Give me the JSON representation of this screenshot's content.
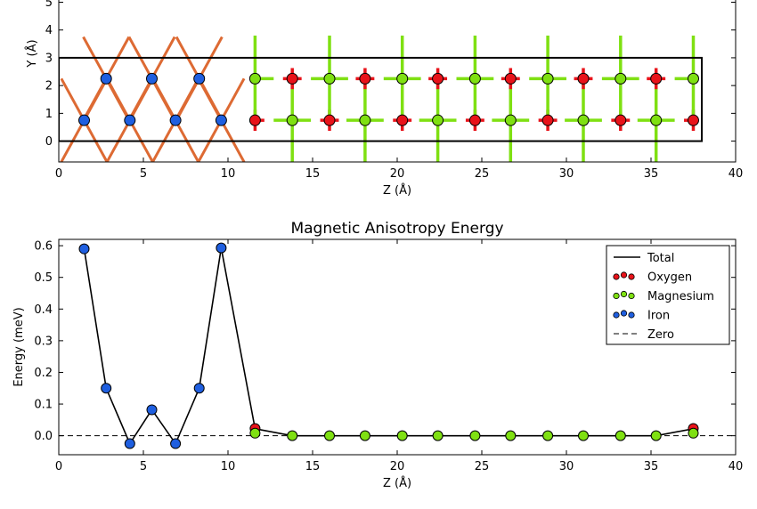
{
  "colors": {
    "iron": "#1f5fe0",
    "oxygen": "#e8131a",
    "magnesium": "#7fe012",
    "fe_bond": "#dd6a33",
    "line": "#000000",
    "background": "#ffffff"
  },
  "chart_data": [
    {
      "type": "scatter",
      "title": "",
      "xlabel": "Z (Å)",
      "ylabel": "Y (Å)",
      "xlim": [
        0,
        40
      ],
      "ylim": [
        -0.75,
        5.4
      ],
      "xticks": [
        0,
        5,
        10,
        15,
        20,
        25,
        30,
        35,
        40
      ],
      "yticks": [
        0,
        1,
        2,
        3,
        4,
        5
      ],
      "grid": false,
      "cell_box": {
        "z": [
          0,
          38
        ],
        "y": [
          0,
          3
        ]
      },
      "iron_atoms": [
        [
          1.5,
          0.75
        ],
        [
          2.8,
          2.25
        ],
        [
          4.2,
          0.75
        ],
        [
          5.5,
          2.25
        ],
        [
          6.9,
          0.75
        ],
        [
          8.3,
          2.25
        ],
        [
          9.6,
          0.75
        ]
      ],
      "mgo_layers_z": [
        11.6,
        13.8,
        16.0,
        18.1,
        20.3,
        22.4,
        24.6,
        26.7,
        28.9,
        31.0,
        33.2,
        35.3,
        37.5
      ],
      "mgo_rows_y": [
        0.75,
        2.25
      ]
    },
    {
      "type": "line",
      "title": "Magnetic Anisotropy Energy",
      "xlabel": "Z (Å)",
      "ylabel": "Energy (meV)",
      "xlim": [
        0,
        40
      ],
      "ylim": [
        -0.06,
        0.62
      ],
      "xticks": [
        0,
        5,
        10,
        15,
        20,
        25,
        30,
        35,
        40
      ],
      "yticks": [
        0.0,
        0.1,
        0.2,
        0.3,
        0.4,
        0.5,
        0.6
      ],
      "ytick_labels": [
        "0.0",
        "0.1",
        "0.2",
        "0.3",
        "0.4",
        "0.5",
        "0.6"
      ],
      "grid": false,
      "legend_placement": "top-right",
      "legend": [
        "Total",
        "Oxygen",
        "Magnesium",
        "Iron",
        "Zero"
      ],
      "total": {
        "x": [
          1.5,
          2.8,
          4.2,
          5.5,
          6.9,
          8.3,
          9.6,
          11.6,
          13.8,
          16.0,
          18.1,
          20.3,
          22.4,
          24.6,
          26.7,
          28.9,
          31.0,
          33.2,
          35.3,
          37.5
        ],
        "y": [
          0.59,
          0.15,
          -0.025,
          0.082,
          -0.025,
          0.15,
          0.593,
          0.022,
          0.0,
          0.0,
          0.0,
          0.0,
          0.0,
          0.0,
          0.0,
          0.0,
          0.0,
          0.0,
          0.0,
          0.022
        ]
      },
      "oxygen": {
        "x": [
          11.6,
          37.5
        ],
        "y": [
          0.023,
          0.023
        ]
      },
      "magnesium": {
        "x": [
          11.6,
          13.8,
          16.0,
          18.1,
          20.3,
          22.4,
          24.6,
          26.7,
          28.9,
          31.0,
          33.2,
          35.3,
          37.5
        ],
        "y": [
          0.008,
          0.0,
          0.0,
          0.0,
          0.0,
          0.0,
          0.0,
          0.0,
          0.0,
          0.0,
          0.0,
          0.0,
          0.008
        ]
      },
      "iron": {
        "x": [
          1.5,
          2.8,
          4.2,
          5.5,
          6.9,
          8.3,
          9.6
        ],
        "y": [
          0.59,
          0.15,
          -0.025,
          0.082,
          -0.025,
          0.15,
          0.593
        ]
      },
      "zero_line": 0.0
    }
  ]
}
